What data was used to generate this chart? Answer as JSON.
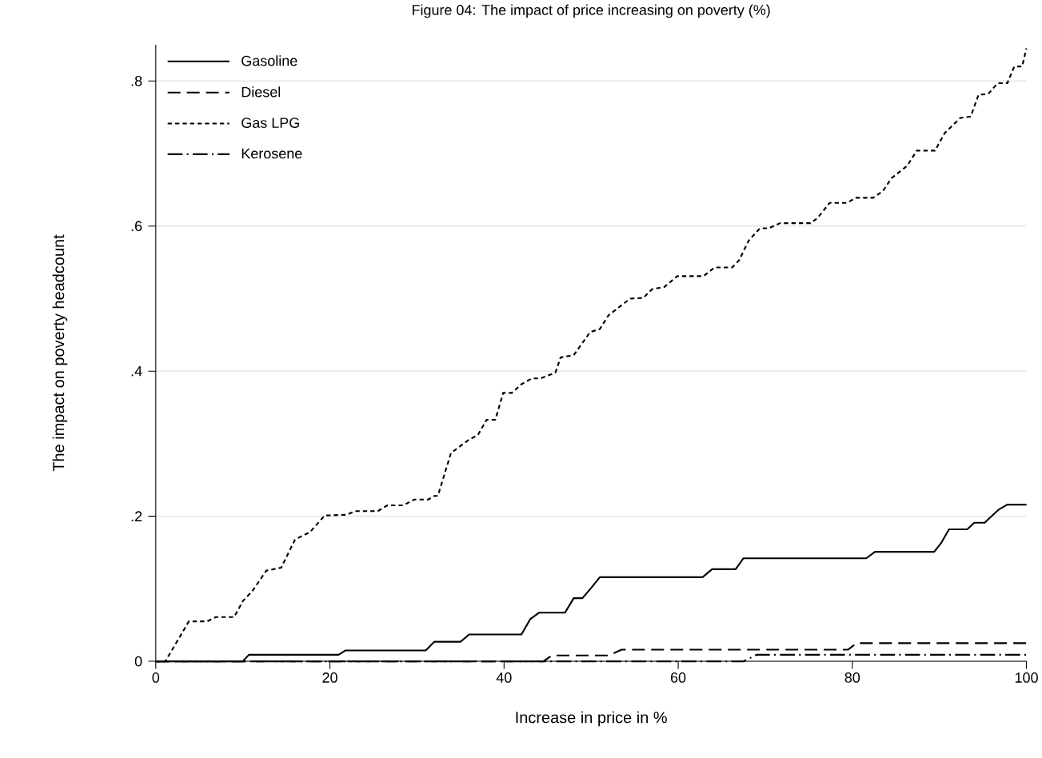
{
  "chart_data": {
    "type": "line",
    "title": "Figure 04: The impact of price increasing on poverty (%)",
    "xlabel": "Increase in price in %",
    "ylabel": "The impact on poverty headcount",
    "xlim": [
      0,
      100
    ],
    "ylim": [
      0,
      0.85
    ],
    "xticks": [
      0,
      20,
      40,
      60,
      80,
      100
    ],
    "yticks": [
      0,
      {
        "value": 0.2,
        "label": ".2"
      },
      {
        "value": 0.4,
        "label": ".4"
      },
      {
        "value": 0.6,
        "label": ".6"
      },
      {
        "value": 0.8,
        "label": ".8"
      }
    ],
    "grid": "y",
    "legend": "top left",
    "marker": "none",
    "series": [
      {
        "name": "Gasoline",
        "color": "#000000",
        "line_style": "solid",
        "x": [
          0,
          10,
          10.7,
          21,
          21.8,
          31,
          32,
          35,
          36,
          42,
          43,
          44,
          47,
          48,
          49,
          50,
          51,
          62.8,
          63.9,
          66.6,
          67.5,
          81.6,
          82.6,
          89.4,
          90.2,
          91.1,
          93.2,
          94,
          95.2,
          95.9,
          96.8,
          97.8,
          100
        ],
        "values": [
          0,
          0,
          0.009,
          0.009,
          0.015,
          0.015,
          0.027,
          0.027,
          0.037,
          0.037,
          0.058,
          0.067,
          0.067,
          0.087,
          0.087,
          0.101,
          0.116,
          0.116,
          0.127,
          0.127,
          0.142,
          0.142,
          0.151,
          0.151,
          0.163,
          0.182,
          0.182,
          0.191,
          0.191,
          0.199,
          0.209,
          0.216,
          0.216
        ]
      },
      {
        "name": "Diesel",
        "color": "#000000",
        "line_style": "dashed",
        "x": [
          0,
          44.5,
          45.5,
          52,
          53.5,
          79.5,
          80.5,
          100
        ],
        "values": [
          0,
          0,
          0.008,
          0.008,
          0.016,
          0.016,
          0.025,
          0.025
        ]
      },
      {
        "name": "Gas LPG",
        "color": "#000000",
        "line_style": "dotted",
        "x": [
          0,
          1.1,
          3.8,
          5.9,
          6.9,
          9,
          10,
          11.1,
          12.7,
          14.4,
          16,
          17.7,
          19.4,
          21.9,
          22.9,
          25.5,
          26.6,
          28.4,
          29.7,
          31.3,
          32,
          32.4,
          33.9,
          35.9,
          37,
          38,
          39,
          39.9,
          40.9,
          42,
          43.2,
          44.2,
          45.9,
          46.5,
          48,
          49.9,
          51,
          52,
          54.5,
          56,
          57,
          58.4,
          59.9,
          62.9,
          64.2,
          66.2,
          67,
          68.1,
          69.4,
          70.4,
          71.7,
          75.2,
          76,
          77.4,
          79.4,
          80.4,
          82.4,
          83.5,
          84.5,
          86.3,
          87.4,
          89.5,
          90.6,
          92.4,
          93.6,
          94.5,
          95.6,
          96.7,
          97.8,
          98.6,
          99.5,
          100
        ],
        "values": [
          0,
          0,
          0.055,
          0.055,
          0.061,
          0.061,
          0.083,
          0.097,
          0.125,
          0.129,
          0.168,
          0.178,
          0.201,
          0.202,
          0.207,
          0.207,
          0.215,
          0.215,
          0.223,
          0.223,
          0.228,
          0.228,
          0.287,
          0.305,
          0.312,
          0.333,
          0.333,
          0.37,
          0.37,
          0.382,
          0.39,
          0.39,
          0.398,
          0.419,
          0.422,
          0.454,
          0.458,
          0.477,
          0.5,
          0.501,
          0.513,
          0.516,
          0.531,
          0.531,
          0.543,
          0.543,
          0.553,
          0.58,
          0.597,
          0.597,
          0.604,
          0.604,
          0.611,
          0.632,
          0.632,
          0.639,
          0.639,
          0.648,
          0.666,
          0.683,
          0.704,
          0.704,
          0.728,
          0.749,
          0.751,
          0.781,
          0.782,
          0.797,
          0.797,
          0.82,
          0.82,
          0.845
        ]
      },
      {
        "name": "Kerosene",
        "color": "#000000",
        "line_style": "dashdot",
        "x": [
          0,
          67.5,
          69,
          100
        ],
        "values": [
          0,
          0,
          0.009,
          0.009
        ]
      }
    ]
  }
}
